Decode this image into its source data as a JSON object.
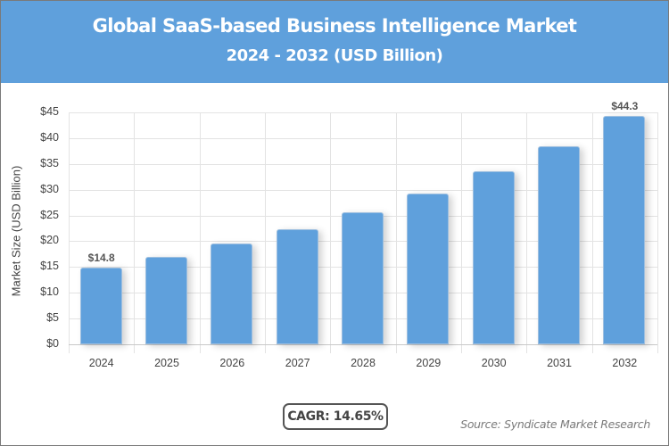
{
  "header": {
    "title": "Global SaaS-based Business Intelligence Market",
    "subtitle": "2024 - 2032 (USD Billion)",
    "background": "#5fa0dc"
  },
  "chart_data": {
    "type": "bar",
    "title": "Global SaaS-based Business Intelligence Market",
    "subtitle": "2024 - 2032 (USD Billion)",
    "xlabel": "",
    "ylabel": "Market Size (USD Billion)",
    "categories": [
      "2024",
      "2025",
      "2026",
      "2027",
      "2028",
      "2029",
      "2030",
      "2031",
      "2032"
    ],
    "values": [
      14.8,
      17.0,
      19.5,
      22.3,
      25.6,
      29.3,
      33.6,
      38.5,
      44.3
    ],
    "data_labels": {
      "2024": "$14.8",
      "2032": "$44.3"
    },
    "ylim": [
      0,
      45
    ],
    "yticks": [
      "$0",
      "$5",
      "$10",
      "$15",
      "$20",
      "$25",
      "$30",
      "$35",
      "$40",
      "$45"
    ],
    "grid": true,
    "legend": null,
    "bar_color": "#5fa0dc"
  },
  "footer": {
    "cagr": "CAGR: 14.65%",
    "source": "Source: Syndicate Market Research"
  }
}
